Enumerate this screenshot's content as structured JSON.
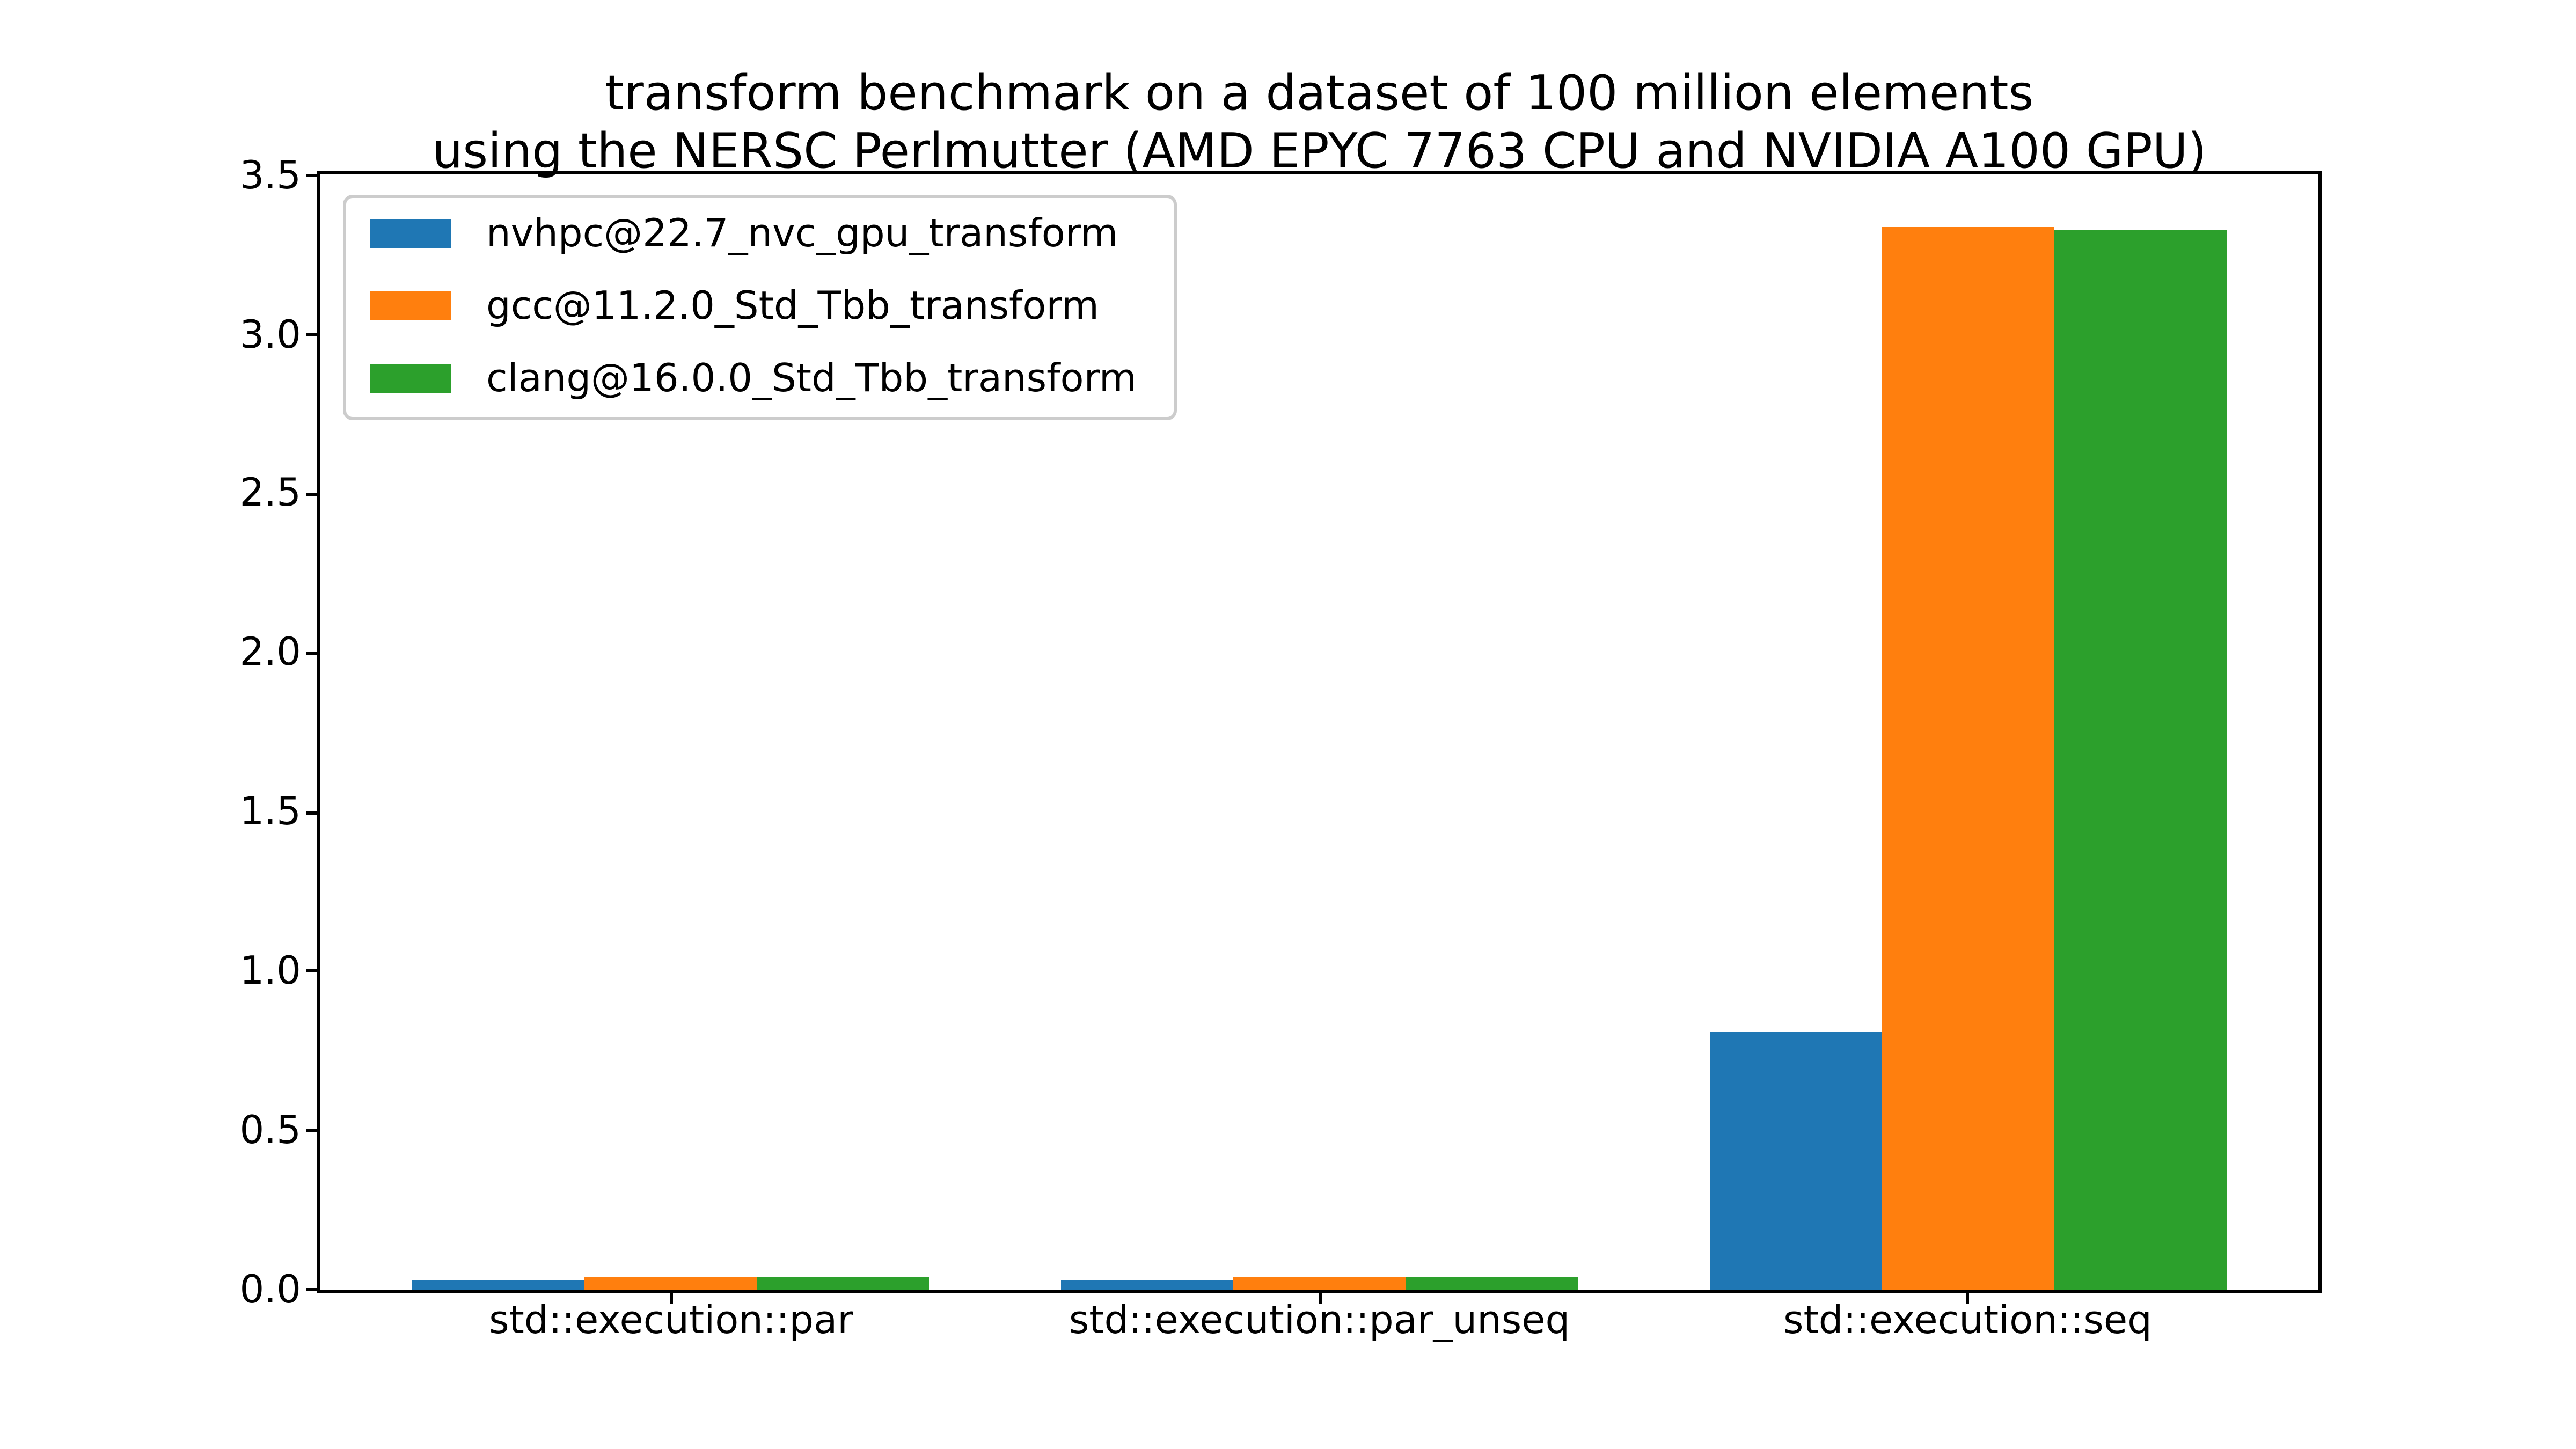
{
  "figure": {
    "background": "#ffffff",
    "title_line1": "transform benchmark on a dataset of 100 million elements",
    "title_line2": "using the NERSC Perlmutter (AMD EPYC 7763 CPU and NVIDIA A100 GPU)"
  },
  "chart_data": {
    "type": "bar",
    "title": "transform benchmark on a dataset of 100 million elements\nusing the NERSC Perlmutter (AMD EPYC 7763 CPU and NVIDIA A100 GPU)",
    "categories": [
      "std::execution::par",
      "std::execution::par_unseq",
      "std::execution::seq"
    ],
    "series": [
      {
        "name": "nvhpc@22.7_nvc_gpu_transform",
        "color": "#1f77b4",
        "values": [
          0.03,
          0.03,
          0.81
        ]
      },
      {
        "name": "gcc@11.2.0_Std_Tbb_transform",
        "color": "#ff7f0e",
        "values": [
          0.04,
          0.04,
          3.34
        ]
      },
      {
        "name": "clang@16.0.0_Std_Tbb_transform",
        "color": "#2ca02c",
        "values": [
          0.04,
          0.04,
          3.33
        ]
      }
    ],
    "xlabel": "",
    "ylabel": "",
    "ylim": [
      0,
      3.507
    ],
    "yticks": [
      0.0,
      0.5,
      1.0,
      1.5,
      2.0,
      2.5,
      3.0,
      3.5
    ],
    "ytick_labels": [
      "0.0",
      "0.5",
      "1.0",
      "1.5",
      "2.0",
      "2.5",
      "3.0",
      "3.5"
    ],
    "grid": false,
    "legend_position": "upper left",
    "axis_color": "#000000",
    "plot_background": "#ffffff"
  }
}
